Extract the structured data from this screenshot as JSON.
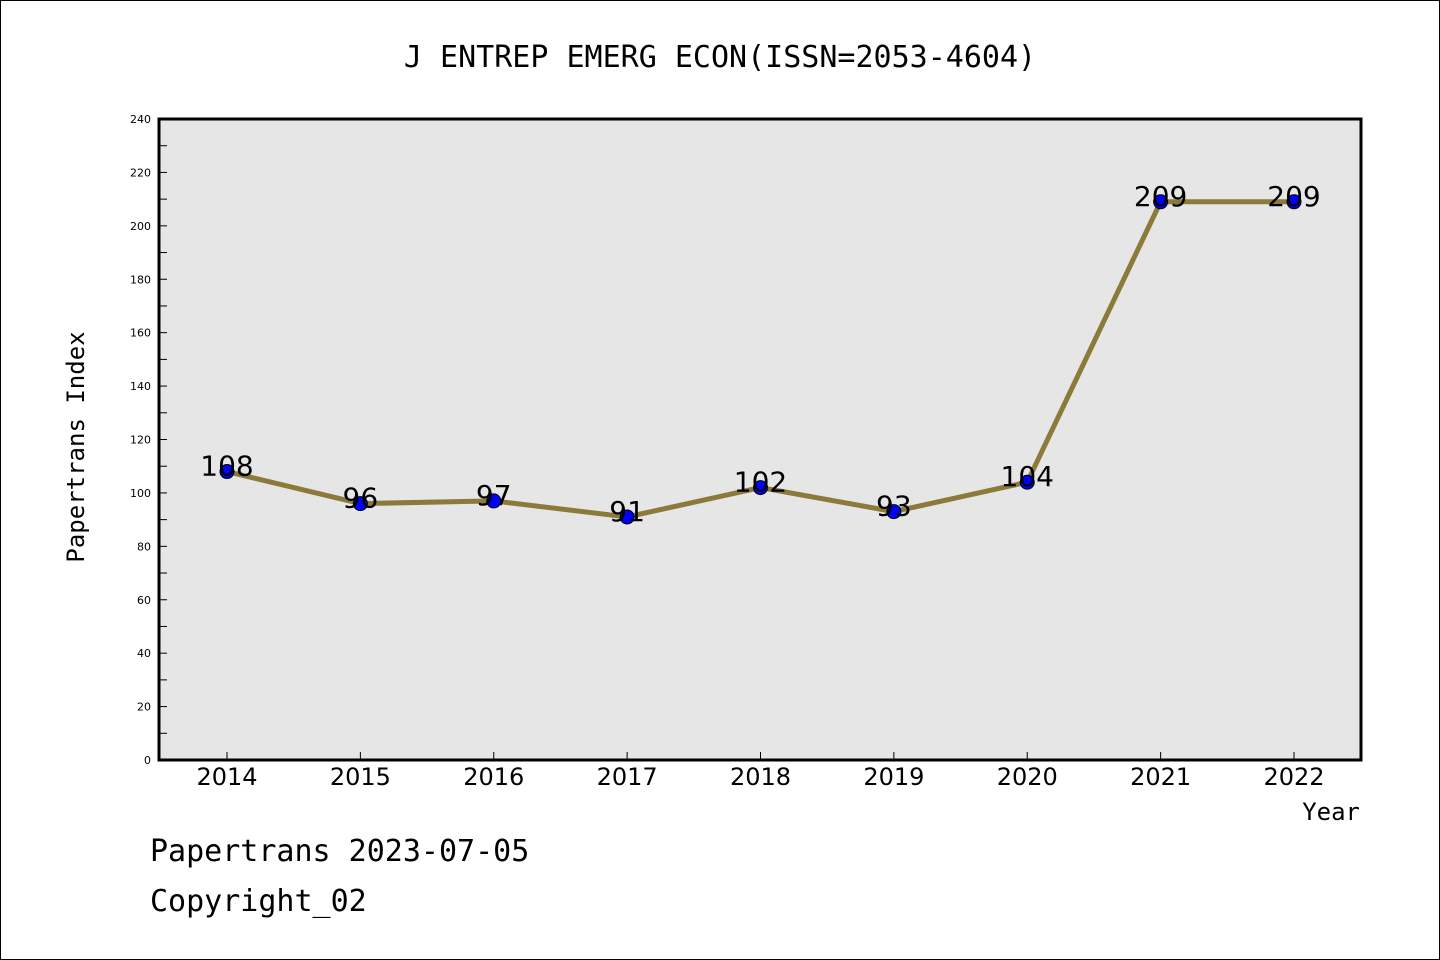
{
  "chart_data": {
    "type": "line",
    "title": "J ENTREP EMERG ECON(ISSN=2053-4604)",
    "xlabel": "Year",
    "ylabel": "Papertrans Index",
    "categories": [
      "2014",
      "2015",
      "2016",
      "2017",
      "2018",
      "2019",
      "2020",
      "2021",
      "2022"
    ],
    "values": [
      108,
      96,
      97,
      91,
      102,
      93,
      104,
      209,
      209
    ],
    "data_labels": [
      "108",
      "96",
      "97",
      "91",
      "102",
      "93",
      "104",
      "209",
      "209"
    ],
    "ylim": [
      0,
      240
    ],
    "y_ticks": [
      0,
      20,
      40,
      60,
      80,
      100,
      120,
      140,
      160,
      180,
      200,
      220,
      240
    ],
    "y_tick_labels": [
      "0",
      "20",
      "40",
      "60",
      "80",
      "100",
      "120",
      "140",
      "160",
      "180",
      "200",
      "220",
      "240"
    ],
    "grid": false,
    "line_color": "#8c7a3a",
    "marker_color": "#0000ff",
    "plot_background": "#e6e6e6"
  },
  "footer": {
    "source": "Papertrans 2023-07-05",
    "copyright": "Copyright_02"
  }
}
